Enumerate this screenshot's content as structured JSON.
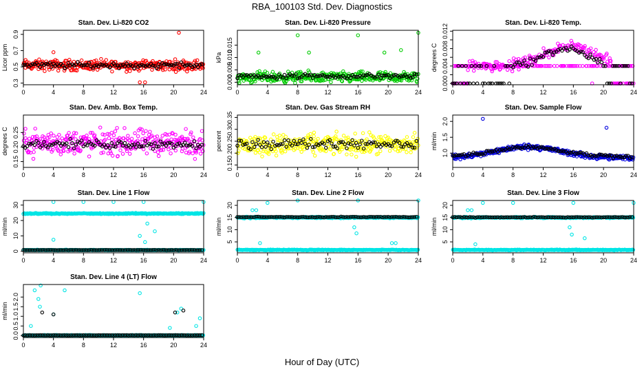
{
  "figure": {
    "title": "RBA_100103  Std. Dev. Diagnostics",
    "xlabel": "Hour of Day (UTC)"
  },
  "chart_data": [
    {
      "type": "scatter",
      "title": "Stan. Dev. Li-820 CO2",
      "ylabel": "Licor ppm",
      "xlim": [
        0,
        24
      ],
      "xticks": [
        0,
        4,
        8,
        12,
        16,
        20,
        24
      ],
      "ylim": [
        0.28,
        0.95
      ],
      "yticks": [
        0.3,
        0.5,
        0.7,
        0.9
      ],
      "ytick_labels": [
        "0.3",
        "0.5",
        "0.7",
        "0.9"
      ],
      "color": "#ff0000",
      "base": 0.52,
      "spread": 0.06,
      "pattern": "flat",
      "outliers": [
        [
          20.7,
          0.92
        ],
        [
          4.0,
          0.68
        ],
        [
          15.5,
          0.31
        ],
        [
          16.2,
          0.31
        ]
      ],
      "daily_base": 0.52,
      "daily_spread": 0.05
    },
    {
      "type": "scatter",
      "title": "Stan. Dev. Li-820 Pressure",
      "ylabel": "kPa",
      "xlim": [
        0,
        24
      ],
      "xticks": [
        0,
        4,
        8,
        12,
        16,
        20,
        24
      ],
      "ylim": [
        -0.001,
        0.021
      ],
      "yticks": [
        0.0,
        0.005,
        0.01,
        0.015
      ],
      "ytick_labels": [
        "0.000",
        "0.005",
        "0.010",
        "0.015"
      ],
      "color": "#00cc00",
      "base": 0.002,
      "spread": 0.002,
      "pattern": "flat",
      "outliers": [
        [
          8.0,
          0.019
        ],
        [
          16.0,
          0.019
        ],
        [
          24.0,
          0.02
        ],
        [
          2.8,
          0.012
        ],
        [
          9.5,
          0.012
        ],
        [
          19.5,
          0.012
        ],
        [
          21.7,
          0.013
        ]
      ],
      "daily_base": 0.0025,
      "daily_spread": 0.0015
    },
    {
      "type": "scatter",
      "title": "Stan. Dev. Li-820 Temp.",
      "ylabel": "degrees C",
      "xlim": [
        0,
        24
      ],
      "xticks": [
        0,
        4,
        8,
        12,
        16,
        20,
        24
      ],
      "ylim": [
        -0.0003,
        0.0122
      ],
      "yticks": [
        0.0,
        0.002,
        0.004,
        0.006,
        0.008,
        0.01,
        0.012
      ],
      "ytick_labels": [
        "0.000",
        "",
        "0.004",
        "",
        "0.008",
        "",
        "0.012"
      ],
      "color": "#ff00ff",
      "base": 0.004,
      "spread": 0.002,
      "pattern": "hump",
      "outliers": [
        [
          18.5,
          0.0
        ],
        [
          22.0,
          0.0
        ]
      ],
      "daily_base": 0.004,
      "daily_spread": 0.002
    },
    {
      "type": "scatter",
      "title": "Stan. Dev. Amb. Box Temp.",
      "ylabel": "degrees C",
      "xlim": [
        0,
        24
      ],
      "xticks": [
        0,
        4,
        8,
        12,
        16,
        20,
        24
      ],
      "ylim": [
        0.13,
        0.31
      ],
      "yticks": [
        0.15,
        0.2,
        0.25
      ],
      "ytick_labels": [
        "0.15",
        "0.20",
        "0.25"
      ],
      "color": "#ff00ff",
      "base": 0.215,
      "spread": 0.04,
      "pattern": "flat",
      "outliers": [],
      "daily_base": 0.21,
      "daily_spread": 0.02
    },
    {
      "type": "scatter",
      "title": "Stan. Dev. Gas Stream RH",
      "ylabel": "percent",
      "xlim": [
        0,
        24
      ],
      "xticks": [
        0,
        4,
        8,
        12,
        16,
        20,
        24
      ],
      "ylim": [
        0.14,
        0.36
      ],
      "yticks": [
        0.15,
        0.2,
        0.25,
        0.3,
        0.35
      ],
      "ytick_labels": [
        "0.15",
        "0.20",
        "0.25",
        "0.30",
        "0.35"
      ],
      "color": "#ffff00",
      "base": 0.235,
      "spread": 0.04,
      "pattern": "flat",
      "outliers": [],
      "daily_base": 0.24,
      "daily_spread": 0.03
    },
    {
      "type": "scatter",
      "title": "Stan. Dev. Sample Flow",
      "ylabel": "ml/min",
      "xlim": [
        0,
        24
      ],
      "xticks": [
        0,
        4,
        8,
        12,
        16,
        20,
        24
      ],
      "ylim": [
        0.55,
        2.2
      ],
      "yticks": [
        1.0,
        1.5,
        2.0
      ],
      "ytick_labels": [
        "1.0",
        "1.5",
        "2.0"
      ],
      "color": "#0000dd",
      "base": 1.0,
      "spread": 0.1,
      "pattern": "sample",
      "outliers": [
        [
          4.0,
          2.08
        ],
        [
          20.4,
          1.8
        ]
      ],
      "daily_base": 1.05,
      "daily_spread": 0.1
    },
    {
      "type": "scatter",
      "title": "Stan. Dev. Line 1 Flow",
      "ylabel": "ml/min",
      "xlim": [
        0,
        24
      ],
      "xticks": [
        0,
        4,
        8,
        12,
        16,
        20,
        24
      ],
      "ylim": [
        -1,
        33
      ],
      "yticks": [
        0,
        10,
        20,
        30
      ],
      "ytick_labels": [
        "0",
        "10",
        "20",
        "30"
      ],
      "color": "#00e5e5",
      "base": 24.5,
      "spread": 0.5,
      "pattern": "twolevel",
      "low": 0.8,
      "outliers": [
        [
          4.0,
          32
        ],
        [
          8.0,
          32
        ],
        [
          12.0,
          32
        ],
        [
          16.0,
          32
        ],
        [
          24.0,
          32
        ],
        [
          4.0,
          7.5
        ],
        [
          15.5,
          10
        ],
        [
          16.2,
          6
        ],
        [
          17.5,
          13
        ],
        [
          16.5,
          18
        ]
      ],
      "daily_base": 0.8,
      "daily_spread": 0.1
    },
    {
      "type": "scatter",
      "title": "Stan. Dev. Line 2 Flow",
      "ylabel": "ml/min",
      "xlim": [
        0,
        24
      ],
      "xticks": [
        0,
        4,
        8,
        12,
        16,
        20,
        24
      ],
      "ylim": [
        0.5,
        22
      ],
      "yticks": [
        5,
        10,
        15,
        20
      ],
      "ytick_labels": [
        "5",
        "10",
        "15",
        "20"
      ],
      "color": "#00e5e5",
      "base": 15,
      "spread": 0.4,
      "pattern": "twolevel",
      "low": 1.7,
      "outliers": [
        [
          4.0,
          21
        ],
        [
          8.0,
          22
        ],
        [
          16.0,
          22
        ],
        [
          24.0,
          22
        ],
        [
          2.0,
          18
        ],
        [
          2.5,
          18
        ],
        [
          15.5,
          11
        ],
        [
          15.8,
          8.5
        ],
        [
          3.0,
          4.5
        ],
        [
          20.5,
          4.5
        ],
        [
          21.0,
          4.5
        ]
      ],
      "daily_base": 15.2,
      "daily_spread": 0.2
    },
    {
      "type": "scatter",
      "title": "Stan. Dev. Line 3 Flow",
      "ylabel": "ml/min",
      "xlim": [
        0,
        24
      ],
      "xticks": [
        0,
        4,
        8,
        12,
        16,
        20,
        24
      ],
      "ylim": [
        0.5,
        22
      ],
      "yticks": [
        5,
        10,
        15,
        20
      ],
      "ytick_labels": [
        "5",
        "10",
        "15",
        "20"
      ],
      "color": "#00e5e5",
      "base": 15,
      "spread": 0.4,
      "pattern": "twolevel",
      "low": 1.7,
      "outliers": [
        [
          4.0,
          21
        ],
        [
          8.0,
          21
        ],
        [
          16.0,
          21
        ],
        [
          24.0,
          21
        ],
        [
          2.0,
          18
        ],
        [
          2.5,
          18
        ],
        [
          15.5,
          11
        ],
        [
          15.8,
          8
        ],
        [
          3.0,
          4
        ],
        [
          17.5,
          6.5
        ]
      ],
      "daily_base": 15.1,
      "daily_spread": 0.2
    },
    {
      "type": "scatter",
      "title": "Stan. Dev. Line 4 (LT) Flow",
      "ylabel": "ml/min",
      "xlim": [
        0,
        24
      ],
      "xticks": [
        0,
        4,
        8,
        12,
        16,
        20,
        24
      ],
      "ylim": [
        -0.1,
        2.65
      ],
      "yticks": [
        0.0,
        0.5,
        1.0,
        1.5,
        2.0
      ],
      "ytick_labels": [
        "0.0",
        "0.5",
        "1.0",
        "1.5",
        "2.0"
      ],
      "color": "#00e5e5",
      "base": 0.02,
      "spread": 0.01,
      "pattern": "flat",
      "outliers": [
        [
          1.0,
          0.5
        ],
        [
          1.5,
          2.35
        ],
        [
          2.0,
          1.9
        ],
        [
          2.3,
          2.6
        ],
        [
          5.5,
          2.35
        ],
        [
          4.0,
          1.1
        ],
        [
          2.2,
          1.5
        ],
        [
          15.5,
          2.2
        ],
        [
          20.5,
          1.2
        ],
        [
          21.0,
          1.4
        ],
        [
          23.0,
          0.5
        ],
        [
          23.5,
          0.9
        ],
        [
          19.5,
          0.4
        ]
      ],
      "daily_base": 0.02,
      "daily_spread": 0.01,
      "daily_out": [
        [
          2.5,
          1.2
        ],
        [
          4.0,
          1.1
        ],
        [
          20.2,
          1.2
        ],
        [
          21.3,
          1.3
        ]
      ]
    }
  ]
}
